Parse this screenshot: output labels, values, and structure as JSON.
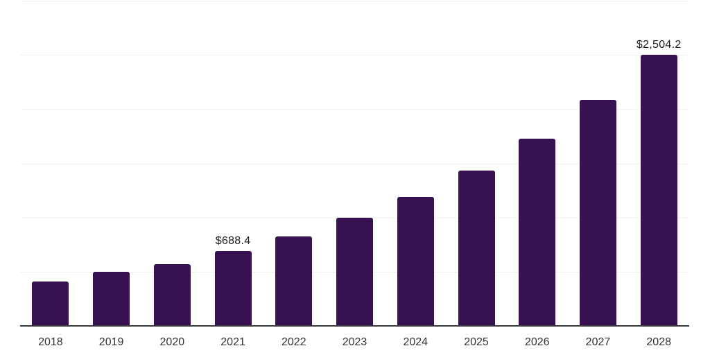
{
  "chart_data": {
    "type": "bar",
    "title": "",
    "xlabel": "",
    "ylabel": "",
    "categories": [
      "2018",
      "2019",
      "2020",
      "2021",
      "2022",
      "2023",
      "2024",
      "2025",
      "2026",
      "2027",
      "2028"
    ],
    "values": [
      412,
      496,
      569,
      688.4,
      827,
      999,
      1193,
      1436,
      1730,
      2087,
      2504.2
    ],
    "data_labels": {
      "2021": "$688.4",
      "2028": "$2,504.2"
    },
    "ylim": [
      0,
      3000
    ],
    "gridline_values": [
      500,
      1000,
      1500,
      2000,
      2500,
      3000
    ],
    "grid": "horizontal-light",
    "legend": "none",
    "bar_color": "#371150",
    "axis_line_color": "#3a3a3a",
    "gridline_color": "#f0f0f0",
    "data_label_color": "#1a1a1a",
    "tick_label_color": "#333333",
    "background_color": "#ffffff"
  }
}
